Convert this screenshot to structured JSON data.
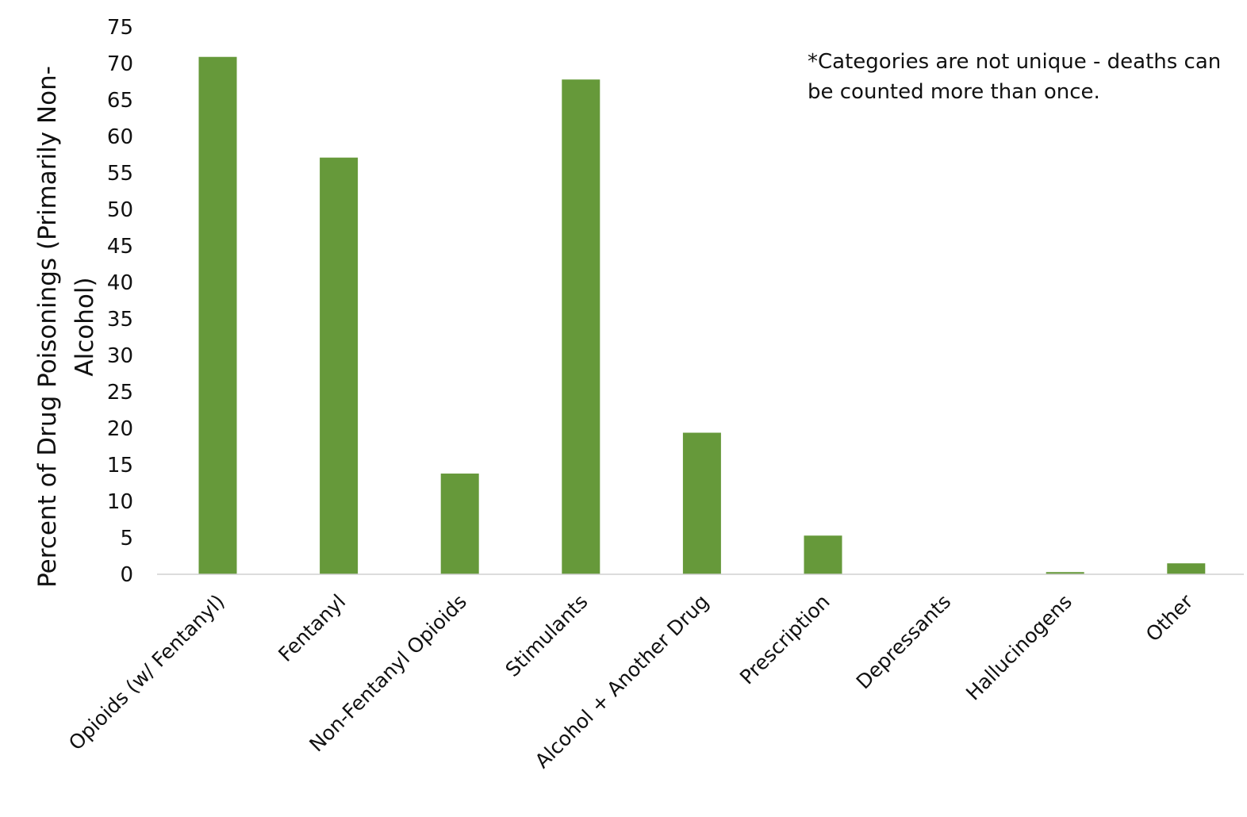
{
  "chart_data": {
    "type": "bar",
    "title": "",
    "xlabel": "",
    "ylabel_lines": [
      "Percent of Drug Poisonings (Primarily Non-",
      "Alcohol)"
    ],
    "categories": [
      "Opioids (w/ Fentanyl)",
      "Fentanyl",
      "Non-Fentanyl Opioids",
      "Stimulants",
      "Alcohol + Another Drug",
      "Prescription",
      "Depressants",
      "Hallucinogens",
      "Other"
    ],
    "values": [
      70.9,
      57.1,
      13.8,
      67.8,
      19.4,
      5.3,
      0,
      0.3,
      1.5
    ],
    "ylim": [
      0,
      75
    ],
    "yticks": [
      0,
      5,
      10,
      15,
      20,
      25,
      30,
      35,
      40,
      45,
      50,
      55,
      60,
      65,
      70,
      75
    ],
    "grid": false,
    "legend": "none",
    "bar_color": "#66993a",
    "axis_color": "#d0d0d0",
    "annotation_lines": [
      "*Categories are not unique - deaths can",
      "be counted more than once."
    ]
  }
}
